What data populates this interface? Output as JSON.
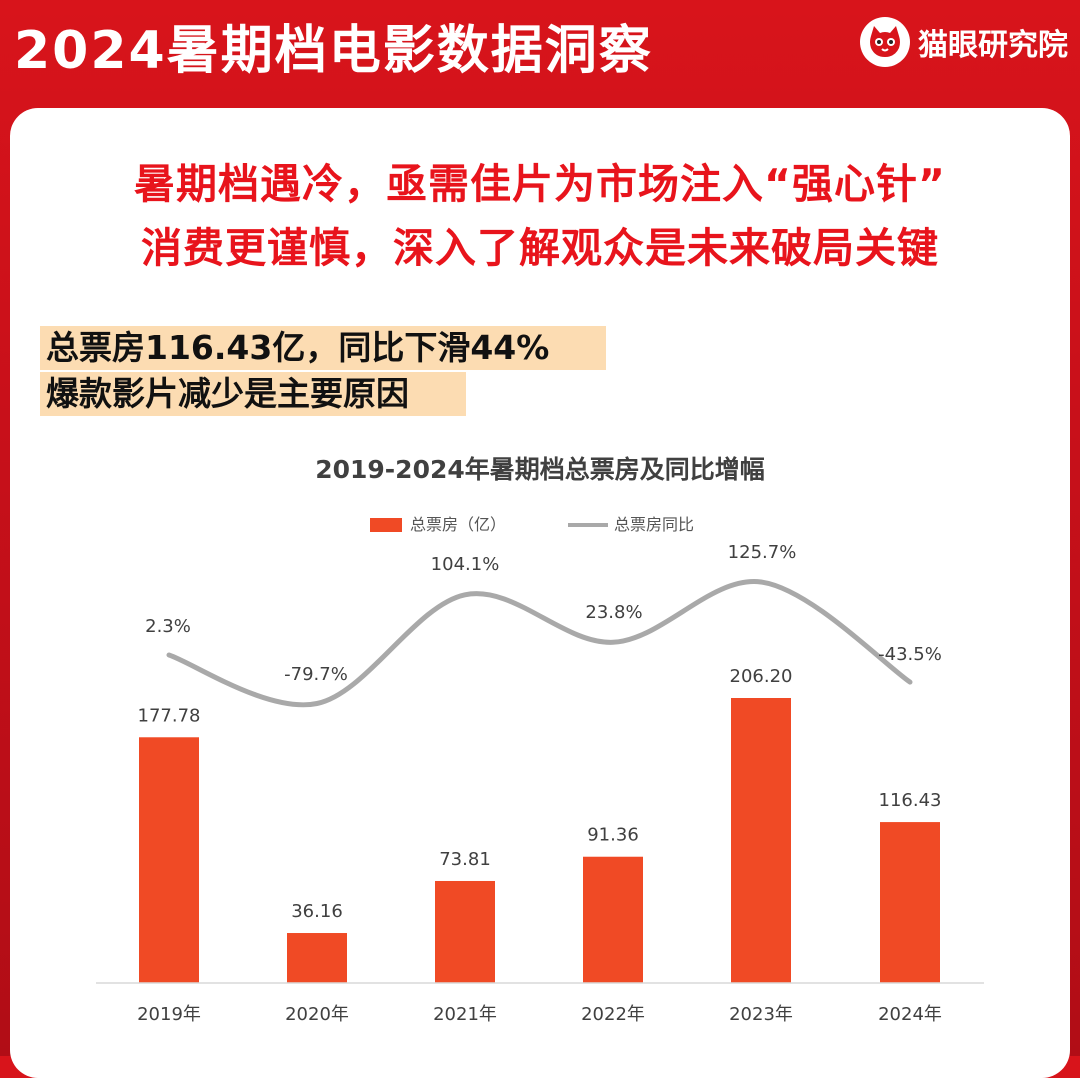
{
  "header": {
    "title": "2024暑期档电影数据洞察",
    "brand": "猫眼研究院",
    "accent_color": "#d8141b",
    "brand_icon": "cat-face-icon"
  },
  "headline": {
    "line1": "暑期档遇冷，亟需佳片为市场注入“强心针”",
    "line2": "消费更谨慎，深入了解观众是未来破局关键",
    "color": "#e8141c"
  },
  "highlight": {
    "line1": "总票房116.43亿，同比下滑44%",
    "line2": "爆款影片减少是主要原因",
    "background": "#fcdcb2"
  },
  "chart_data": {
    "type": "bar",
    "title": "2019-2024年暑期档总票房及同比增幅",
    "categories": [
      "2019年",
      "2020年",
      "2021年",
      "2022年",
      "2023年",
      "2024年"
    ],
    "series": [
      {
        "name": "总票房（亿）",
        "type": "bar",
        "color": "#f04a25",
        "values": [
          177.78,
          36.16,
          73.81,
          91.36,
          206.2,
          116.43
        ],
        "labels": [
          "177.78",
          "36.16",
          "73.81",
          "91.36",
          "206.20",
          "116.43"
        ]
      },
      {
        "name": "总票房同比",
        "type": "line",
        "color": "#a9a9a9",
        "values": [
          2.3,
          -79.7,
          104.1,
          23.8,
          125.7,
          -43.5
        ],
        "labels": [
          "2.3%",
          "-79.7%",
          "104.1%",
          "23.8%",
          "125.7%",
          "-43.5%"
        ]
      }
    ],
    "legend_position": "top-center",
    "grid": false
  }
}
